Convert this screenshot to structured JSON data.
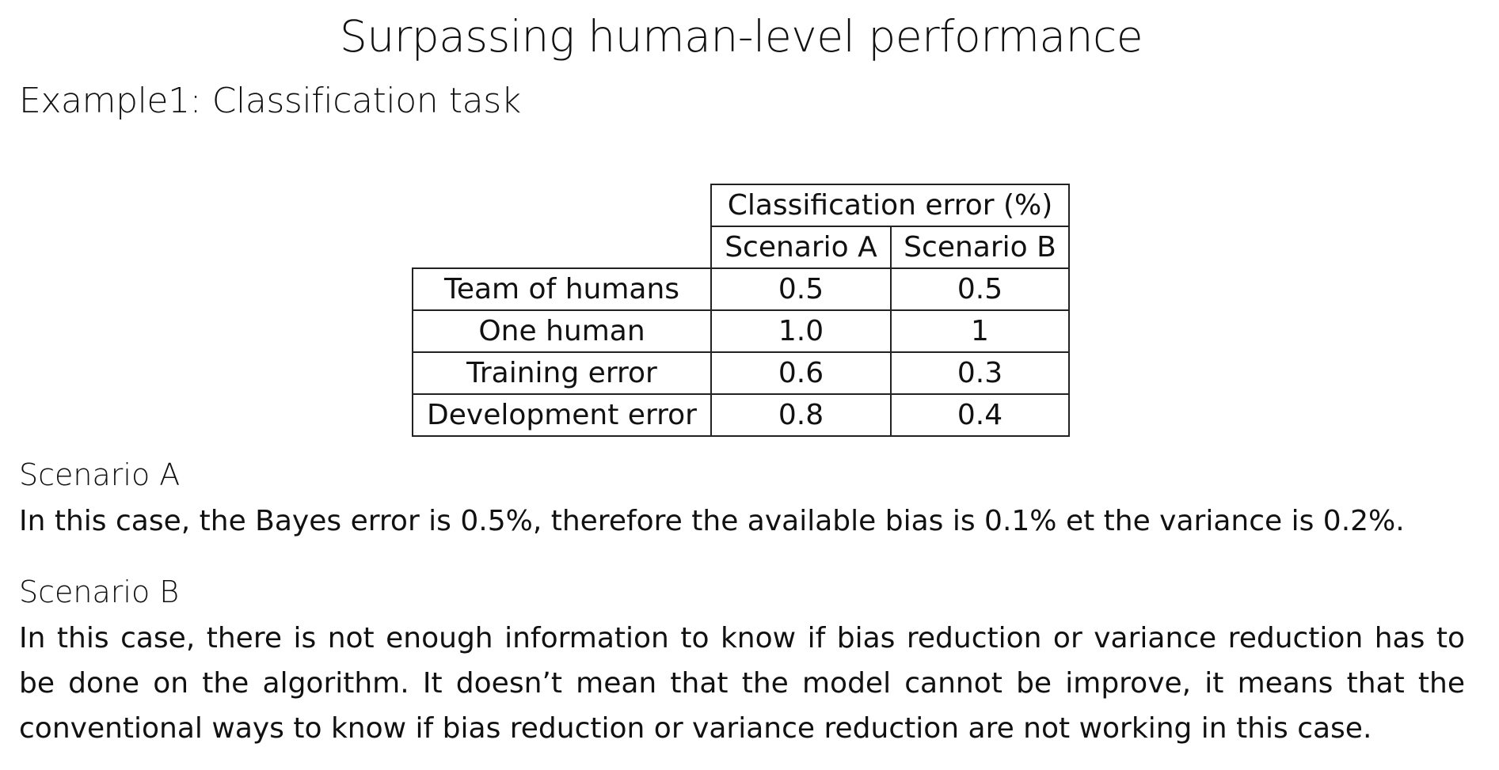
{
  "title": "Surpassing human-level performance",
  "example_title": "Example1: Classification task",
  "table": {
    "group_header": "Classification error (%)",
    "column_headers": [
      "Scenario A",
      "Scenario B"
    ],
    "rows": [
      {
        "label": "Team of humans",
        "a": "0.5",
        "b": "0.5"
      },
      {
        "label": "One human",
        "a": "1.0",
        "b": "1"
      },
      {
        "label": "Training error",
        "a": "0.6",
        "b": "0.3"
      },
      {
        "label": "Development error",
        "a": "0.8",
        "b": "0.4"
      }
    ]
  },
  "scenario_a": {
    "heading": "Scenario A",
    "text": "In this case, the Bayes error is 0.5%, therefore the available bias is 0.1% et the variance is 0.2%."
  },
  "scenario_b": {
    "heading": "Scenario B",
    "text": "In this case, there is not enough information to know if bias reduction or variance reduction has to be done on the algorithm. It doesn’t mean that the model cannot be improve, it means that the conventional ways to know if bias reduction or variance reduction are not working in this case."
  }
}
